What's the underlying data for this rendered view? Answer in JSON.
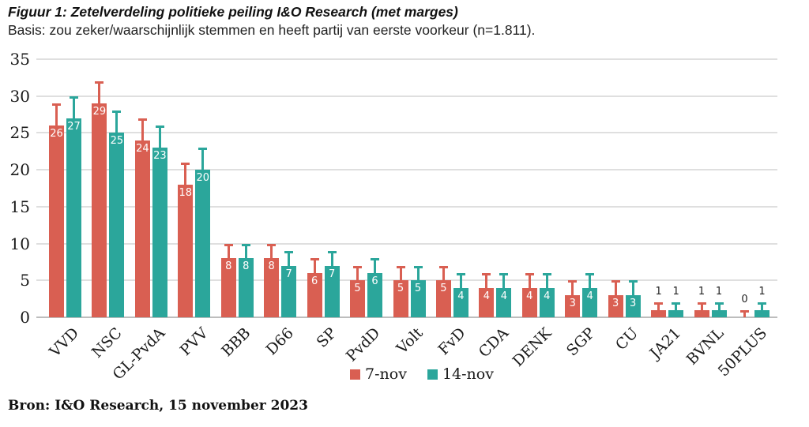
{
  "header": {
    "title": "Figuur 1: Zetelverdeling politieke peiling I&O Research (met marges)",
    "subtitle": "Basis: zou zeker/waarschijnlijk stemmen en heeft partij van eerste voorkeur (n=1.811)."
  },
  "footer": {
    "source": "Bron: I&O Research, 15 november 2023"
  },
  "colors": {
    "series_7nov": "#d95f52",
    "series_14nov": "#2ba69b",
    "gridline": "#dfdfdf",
    "axis_line": "#bdbdbd",
    "text": "#1a1a1a"
  },
  "chart_data": {
    "type": "bar",
    "title": "Figuur 1: Zetelverdeling politieke peiling I&O Research (met marges)",
    "subtitle": "Basis: zou zeker/waarschijnlijk stemmen en heeft partij van eerste voorkeur (n=1.811).",
    "xlabel": "",
    "ylabel": "",
    "ylim": [
      0,
      35
    ],
    "yticks": [
      0,
      5,
      10,
      15,
      20,
      25,
      30,
      35
    ],
    "grid": true,
    "legend_position": "bottom",
    "categories": [
      "VVD",
      "NSC",
      "GL-PvdA",
      "PVV",
      "BBB",
      "D66",
      "SP",
      "PvdD",
      "Volt",
      "FvD",
      "CDA",
      "DENK",
      "SGP",
      "CU",
      "JA21",
      "BVNL",
      "50PLUS"
    ],
    "series": [
      {
        "name": "7-nov",
        "color": "#d95f52",
        "values": [
          26,
          29,
          24,
          18,
          8,
          8,
          6,
          5,
          5,
          5,
          4,
          4,
          3,
          3,
          1,
          1,
          0
        ],
        "error_upper": [
          3,
          3,
          3,
          3,
          2,
          2,
          2,
          2,
          2,
          2,
          2,
          2,
          2,
          2,
          1,
          1,
          1
        ]
      },
      {
        "name": "14-nov",
        "color": "#2ba69b",
        "values": [
          27,
          25,
          23,
          20,
          8,
          7,
          7,
          6,
          5,
          4,
          4,
          4,
          4,
          3,
          1,
          1,
          1
        ],
        "error_upper": [
          3,
          3,
          3,
          3,
          2,
          2,
          2,
          2,
          2,
          2,
          2,
          2,
          2,
          2,
          1,
          1,
          1
        ]
      }
    ],
    "annotations": "white value labels inside bars (values >= 3), black labels above error caps for small bars"
  }
}
